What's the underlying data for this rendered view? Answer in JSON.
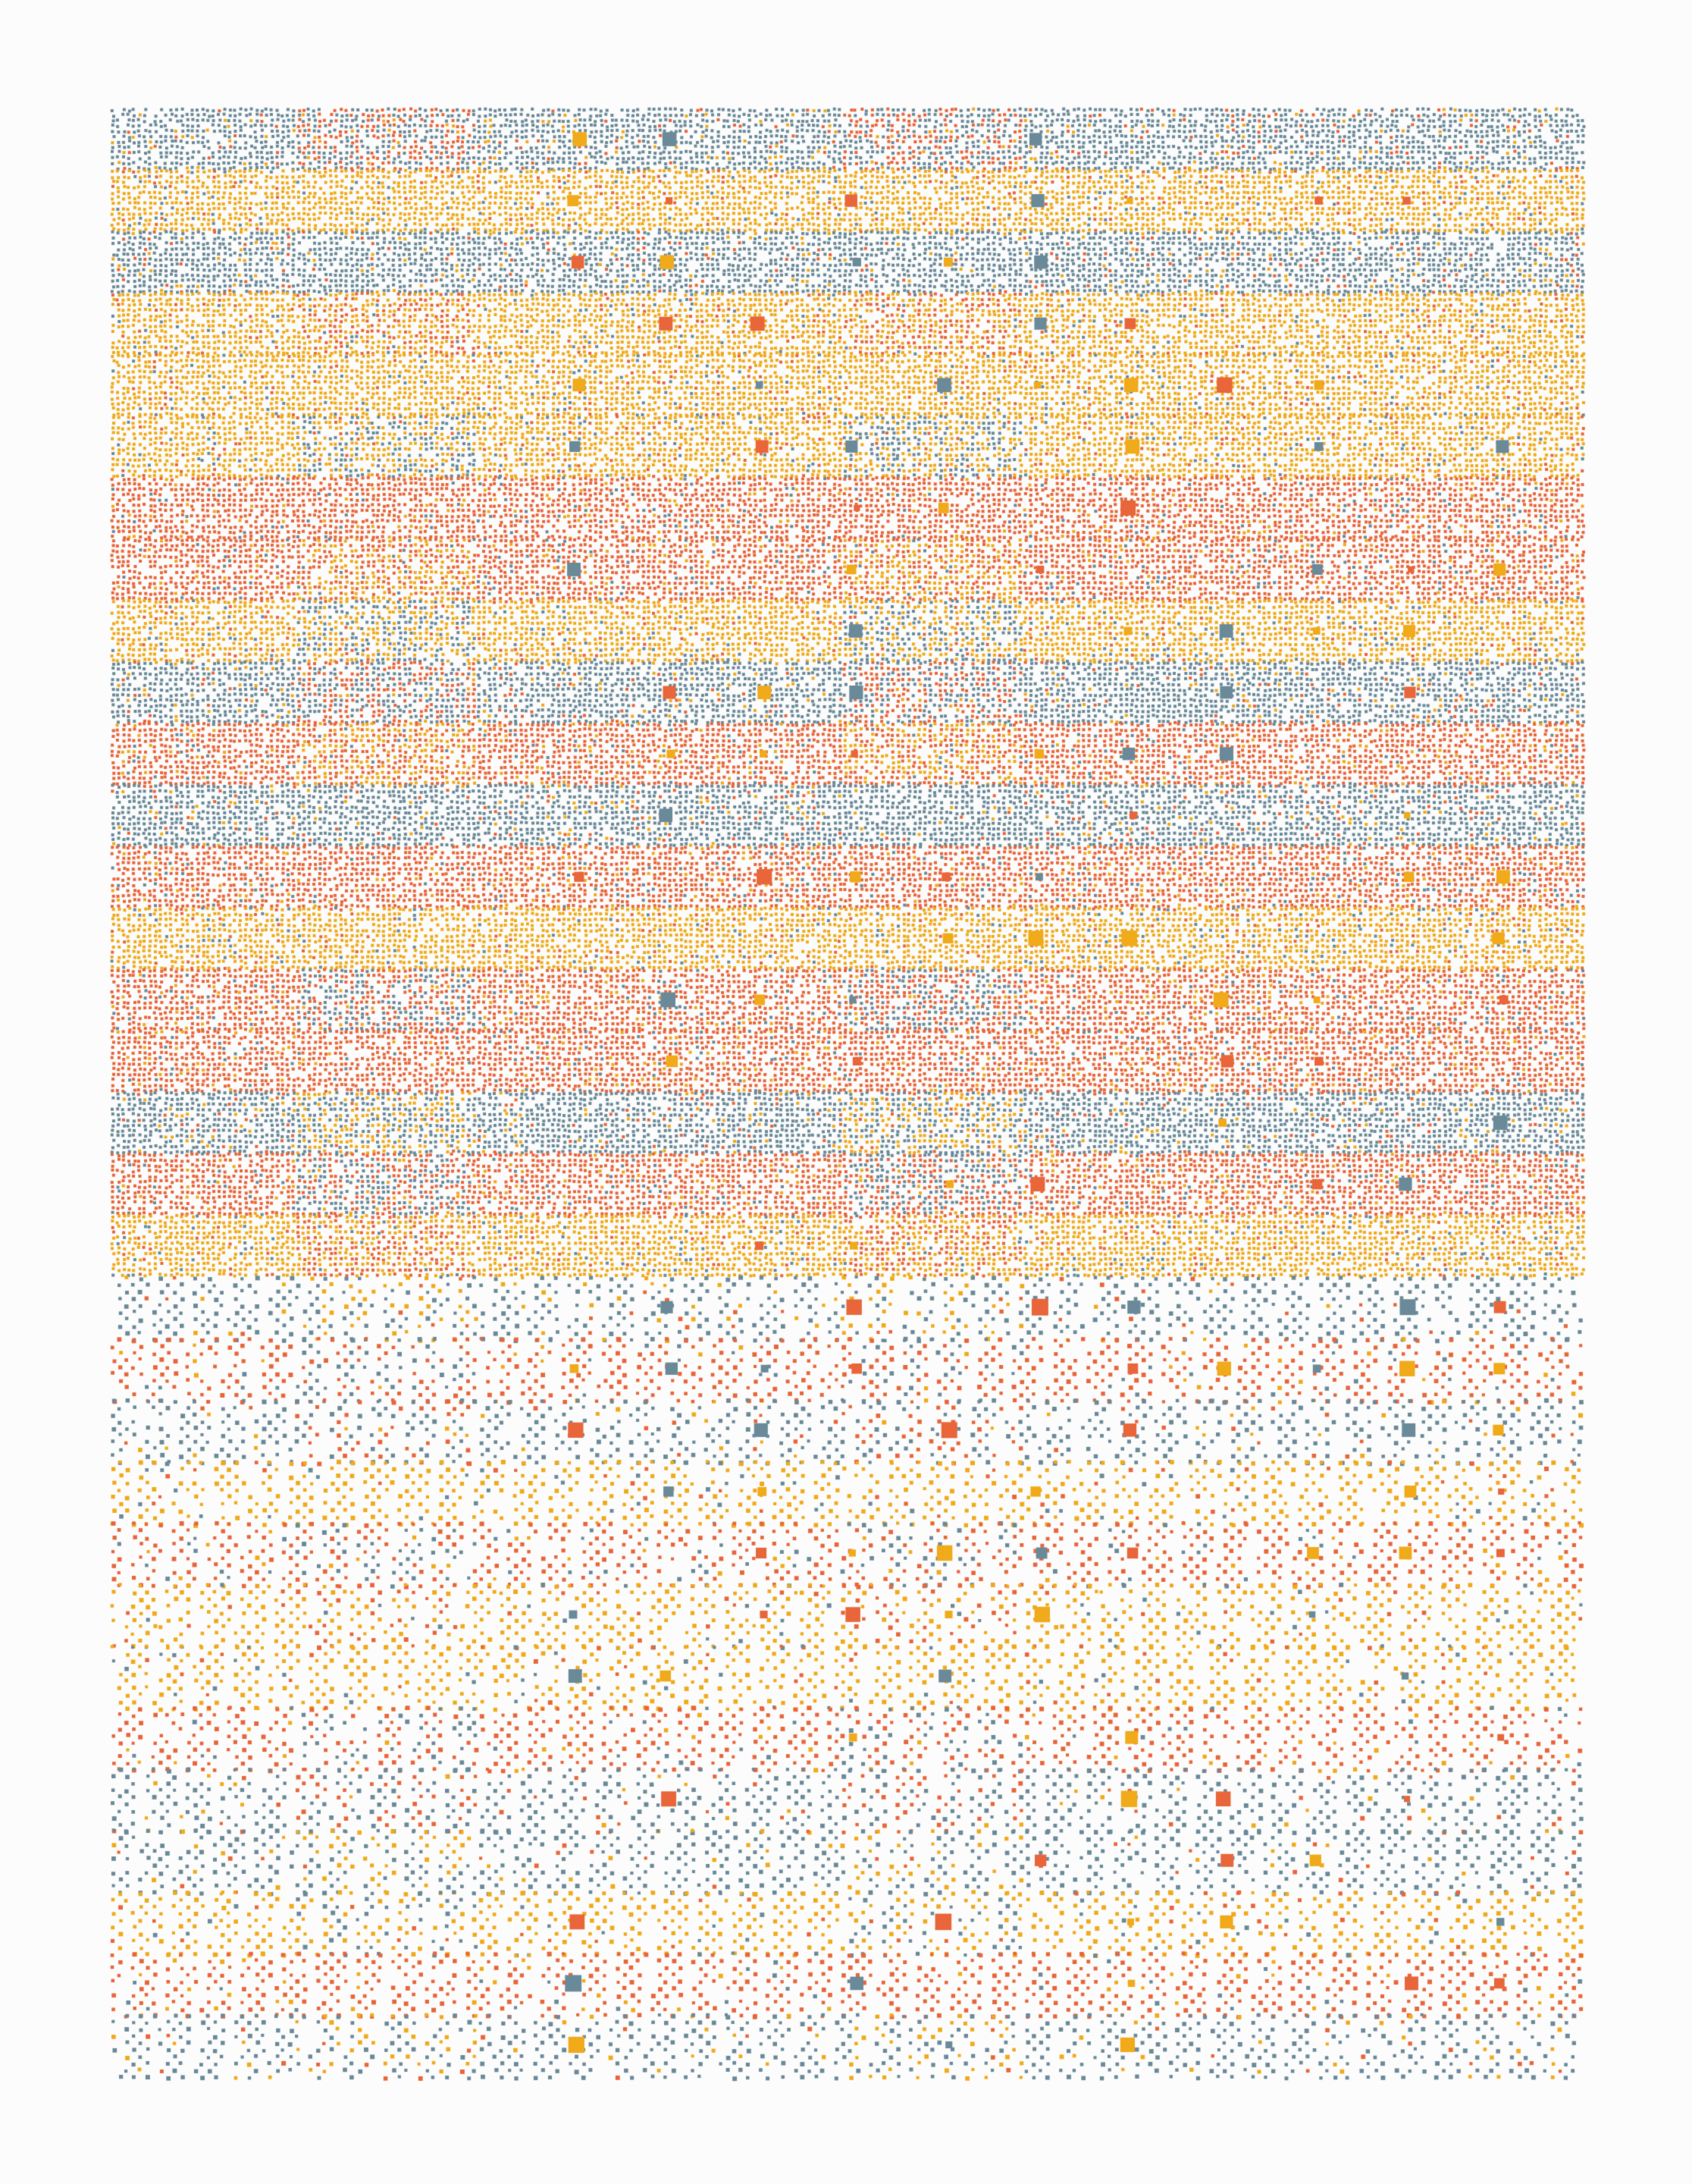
{
  "artwork": {
    "background": "#fcfcfc",
    "palette": {
      "blue": "#6a8a99",
      "orange": "#e8663a",
      "yellow": "#f0aa1a"
    },
    "bands": [
      "blue",
      "yellow",
      "blue",
      "yellow",
      "yellow",
      "yellow",
      "orange",
      "orange",
      "yellow",
      "blue",
      "orange",
      "blue",
      "orange",
      "yellow",
      "orange",
      "orange",
      "blue",
      "orange",
      "yellow",
      "blue",
      "orange",
      "blue",
      "yellow",
      "orange",
      "yellow",
      "yellow",
      "orange",
      "blue",
      "blue",
      "yellow",
      "orange",
      "blue"
    ]
  }
}
